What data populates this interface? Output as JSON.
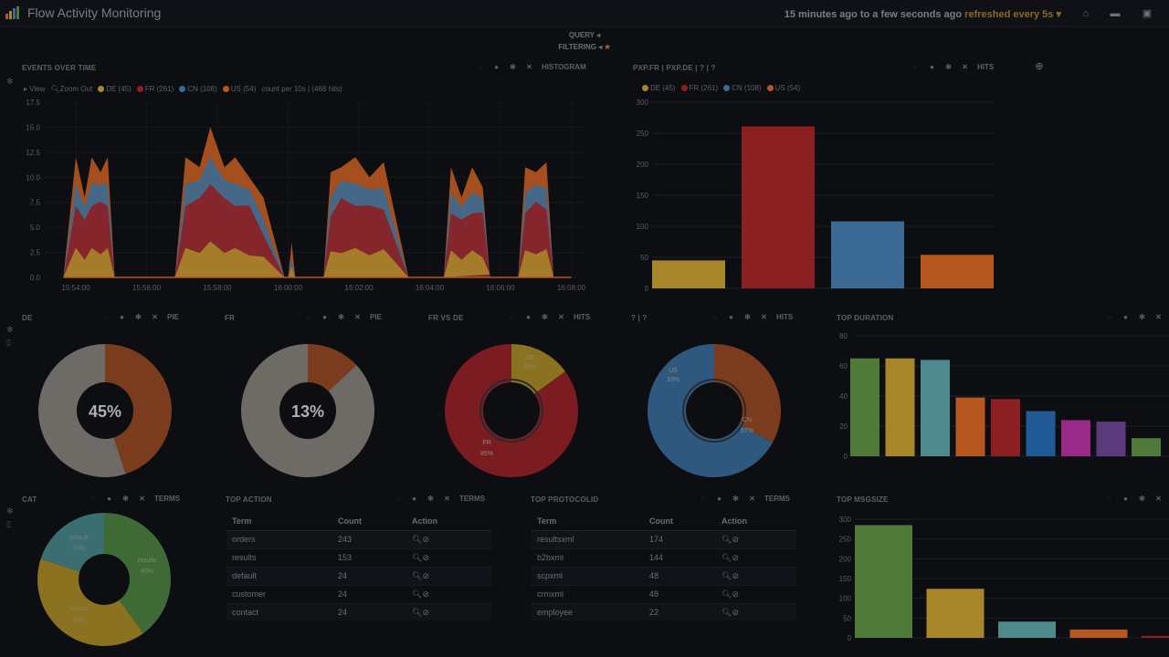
{
  "app": {
    "title": "Flow Activity Monitoring"
  },
  "timepicker": {
    "range": "15 minutes ago to a few seconds ago",
    "refresh": "refreshed every 5s"
  },
  "subrows": {
    "query": "QUERY",
    "filtering": "FILTERING"
  },
  "colors": {
    "de": "#a8862a",
    "fr": "#8b1f22",
    "cn": "#3b6a94",
    "us": "#b5571f",
    "green": "#4f7a3a",
    "teal": "#4e8a8c",
    "blue": "#1f5a94",
    "magenta": "#9a2a8a",
    "purple": "#5a3a7a"
  },
  "events": {
    "title": "EVENTS OVER TIME",
    "mode": "HISTOGRAM",
    "view_label": "View",
    "zoom_label": "Zoom Out",
    "legend": [
      "DE (45)",
      "FR (261)",
      "CN (108)",
      "US (54)"
    ],
    "note": "count per 10s | (468 hits)"
  },
  "hits_bar": {
    "title": "PXP.FR | PXP.DE | ? | ?",
    "mode": "HITS",
    "legend": [
      "DE (45)",
      "FR (261)",
      "CN (108)",
      "US (54)"
    ]
  },
  "pies": [
    {
      "title": "DE",
      "mode": "PIE",
      "center": "45%"
    },
    {
      "title": "FR",
      "mode": "PIE",
      "center": "13%"
    },
    {
      "title": "FR VS DE",
      "mode": "HITS",
      "label_a": "DE",
      "pct_a": "15%",
      "label_b": "FR",
      "pct_b": "85%"
    },
    {
      "title": "? | ?",
      "mode": "HITS",
      "label_a": "US",
      "pct_a": "33%",
      "label_b": "CN",
      "pct_b": "67%"
    }
  ],
  "top_duration": {
    "title": "TOP DURATION"
  },
  "cat": {
    "title": "CAT",
    "mode": "TERMS",
    "slices": [
      {
        "label": "results",
        "pct": "40%"
      },
      {
        "label": "orders",
        "pct": "33%"
      },
      {
        "label": "default",
        "pct": "20%"
      }
    ]
  },
  "top_action": {
    "title": "TOP ACTION",
    "mode": "TERMS",
    "headers": [
      "Term",
      "Count",
      "Action"
    ],
    "rows": [
      {
        "term": "orders",
        "count": "243"
      },
      {
        "term": "results",
        "count": "153"
      },
      {
        "term": "default",
        "count": "24"
      },
      {
        "term": "customer",
        "count": "24"
      },
      {
        "term": "contact",
        "count": "24"
      }
    ]
  },
  "top_protocol": {
    "title": "TOP PROTOCOLID",
    "mode": "TERMS",
    "headers": [
      "Term",
      "Count",
      "Action"
    ],
    "rows": [
      {
        "term": "resultsxml",
        "count": "174"
      },
      {
        "term": "b2bxml",
        "count": "144"
      },
      {
        "term": "scpxml",
        "count": "48"
      },
      {
        "term": "crmxml",
        "count": "48"
      },
      {
        "term": "employee",
        "count": "22"
      }
    ]
  },
  "top_msgsize": {
    "title": "TOP MSGSIZE"
  },
  "chart_data": [
    {
      "type": "area",
      "title": "EVENTS OVER TIME",
      "x": [
        "15:54:00",
        "15:56:00",
        "15:58:00",
        "16:00:00",
        "16:02:00",
        "16:04:00",
        "16:06:00",
        "16:08:00"
      ],
      "yticks": [
        "0.0",
        "2.5",
        "5.0",
        "7.5",
        "10.0",
        "12.5",
        "15.0",
        "17.5"
      ],
      "ylim": [
        0,
        17.5
      ],
      "series": [
        {
          "name": "DE (45)"
        },
        {
          "name": "FR (261)"
        },
        {
          "name": "CN (108)"
        },
        {
          "name": "US (54)"
        }
      ]
    },
    {
      "type": "bar",
      "title": "PXP.FR | PXP.DE | ? | ?",
      "categories": [
        "DE (45)",
        "FR (261)",
        "CN (108)",
        "US (54)"
      ],
      "values": [
        45,
        261,
        108,
        54
      ],
      "yticks": [
        "0",
        "50",
        "100",
        "150",
        "200",
        "250",
        "300"
      ],
      "ylim": [
        0,
        300
      ]
    },
    {
      "type": "pie",
      "title": "DE",
      "values": [
        55,
        45
      ]
    },
    {
      "type": "pie",
      "title": "FR",
      "values": [
        87,
        13
      ]
    },
    {
      "type": "pie",
      "title": "FR VS DE",
      "labels": [
        "DE",
        "FR"
      ],
      "values": [
        15,
        85
      ]
    },
    {
      "type": "pie",
      "title": "? | ?",
      "labels": [
        "US",
        "CN"
      ],
      "values": [
        33,
        67
      ]
    },
    {
      "type": "bar",
      "title": "TOP DURATION",
      "values": [
        65,
        65,
        64,
        39,
        38,
        30,
        24,
        23,
        12
      ],
      "yticks": [
        "0",
        "20",
        "40",
        "60",
        "80"
      ],
      "ylim": [
        0,
        80
      ]
    },
    {
      "type": "pie",
      "title": "CAT",
      "labels": [
        "results",
        "orders",
        "default"
      ],
      "values": [
        40,
        33,
        20
      ]
    },
    {
      "type": "bar",
      "title": "TOP MSGSIZE",
      "values": [
        285,
        124,
        41,
        21,
        5
      ],
      "yticks": [
        "0",
        "50",
        "100",
        "150",
        "200",
        "250",
        "300"
      ],
      "ylim": [
        0,
        300
      ]
    }
  ]
}
